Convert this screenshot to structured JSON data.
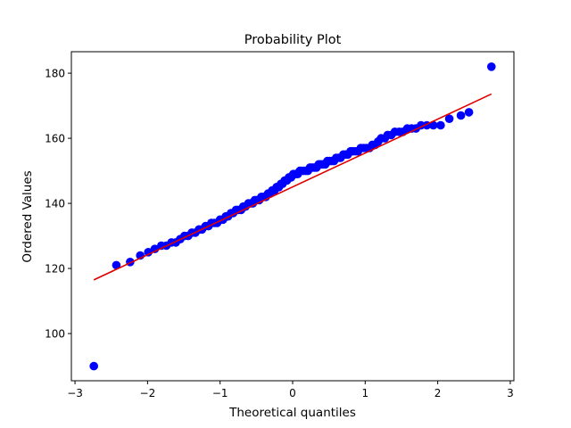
{
  "chart_data": {
    "type": "scatter",
    "title": "Probability Plot",
    "xlabel": "Theoretical quantiles",
    "ylabel": "Ordered Values",
    "xlim": [
      -3.05,
      3.05
    ],
    "ylim": [
      85.5,
      186.6
    ],
    "xticks": [
      -3,
      -2,
      -1,
      0,
      1,
      2,
      3
    ],
    "xtick_labels": [
      "−3",
      "−2",
      "−1",
      "0",
      "1",
      "2",
      "3"
    ],
    "yticks": [
      100,
      120,
      140,
      160,
      180
    ],
    "ytick_labels": [
      "100",
      "120",
      "140",
      "160",
      "180"
    ],
    "grid": false,
    "legend": null,
    "series": [
      {
        "name": "ordered values",
        "kind": "markers",
        "color": "#0000ff",
        "x": [
          -2.74,
          -2.43,
          -2.24,
          -2.1,
          -1.99,
          -1.9,
          -1.81,
          -1.74,
          -1.67,
          -1.61,
          -1.55,
          -1.49,
          -1.44,
          -1.39,
          -1.34,
          -1.29,
          -1.25,
          -1.2,
          -1.16,
          -1.12,
          -1.08,
          -1.04,
          -1.0,
          -0.96,
          -0.92,
          -0.89,
          -0.85,
          -0.82,
          -0.78,
          -0.75,
          -0.71,
          -0.68,
          -0.65,
          -0.61,
          -0.58,
          -0.55,
          -0.52,
          -0.49,
          -0.46,
          -0.43,
          -0.4,
          -0.37,
          -0.34,
          -0.31,
          -0.28,
          -0.25,
          -0.22,
          -0.19,
          -0.16,
          -0.14,
          -0.11,
          -0.08,
          -0.05,
          -0.02,
          0.01,
          0.04,
          0.07,
          0.1,
          0.12,
          0.15,
          0.18,
          0.21,
          0.24,
          0.27,
          0.3,
          0.33,
          0.36,
          0.39,
          0.42,
          0.45,
          0.48,
          0.51,
          0.54,
          0.57,
          0.6,
          0.63,
          0.66,
          0.7,
          0.73,
          0.76,
          0.8,
          0.83,
          0.87,
          0.9,
          0.94,
          0.98,
          1.02,
          1.06,
          1.1,
          1.14,
          1.18,
          1.22,
          1.27,
          1.31,
          1.36,
          1.41,
          1.47,
          1.52,
          1.58,
          1.64,
          1.7,
          1.77,
          1.85,
          1.94,
          2.04,
          2.16,
          2.32,
          2.43,
          2.74
        ],
        "y": [
          90,
          121,
          122,
          124,
          125,
          126,
          127,
          127,
          128,
          128,
          129,
          130,
          130,
          131,
          131,
          132,
          132,
          133,
          133,
          134,
          134,
          134,
          135,
          135,
          136,
          136,
          137,
          137,
          138,
          138,
          138,
          139,
          139,
          140,
          140,
          140,
          141,
          141,
          141,
          142,
          142,
          142,
          143,
          143,
          144,
          144,
          145,
          145,
          146,
          146,
          147,
          147,
          148,
          148,
          149,
          149,
          149,
          150,
          150,
          150,
          150,
          150,
          151,
          151,
          151,
          151,
          152,
          152,
          152,
          152,
          153,
          153,
          153,
          153,
          154,
          154,
          154,
          155,
          155,
          155,
          156,
          156,
          156,
          156,
          157,
          157,
          157,
          157,
          158,
          158,
          159,
          160,
          160,
          161,
          161,
          162,
          162,
          162,
          163,
          163,
          163,
          164,
          164,
          164,
          164,
          166,
          167,
          168,
          182
        ]
      },
      {
        "name": "fit line",
        "kind": "line",
        "color": "#e00000",
        "x": [
          -2.74,
          2.74
        ],
        "y": [
          116.5,
          173.6
        ]
      }
    ]
  }
}
